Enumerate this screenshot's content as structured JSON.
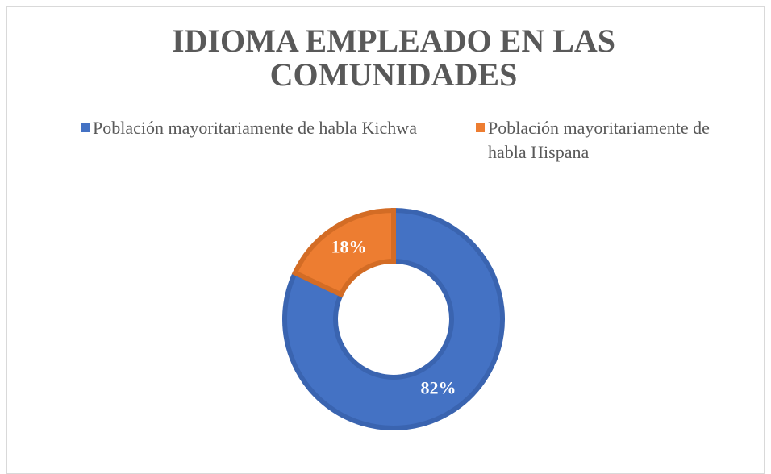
{
  "chart_data": {
    "type": "donut",
    "title": "IDIOMA EMPLEADO EN LAS COMUNIDADES",
    "categories": [
      "Población mayoritariamente de habla Kichwa",
      "Población mayoritariamente de habla Hispana"
    ],
    "values": [
      82,
      18
    ],
    "value_labels": [
      "82%",
      "18%"
    ],
    "colors": [
      "#4472c4",
      "#ed7d31"
    ],
    "legend": "top"
  }
}
